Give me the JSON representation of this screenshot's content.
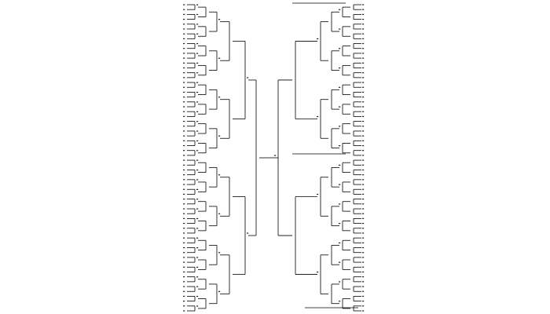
{
  "figure": {
    "background": "#ffffff",
    "line_color": "#000000",
    "text_color": "#222222",
    "left_tree": {
      "leaf_count": 64,
      "orientation": "root-right"
    },
    "right_tree": {
      "leaf_count": 64,
      "orientation": "root-left"
    }
  }
}
